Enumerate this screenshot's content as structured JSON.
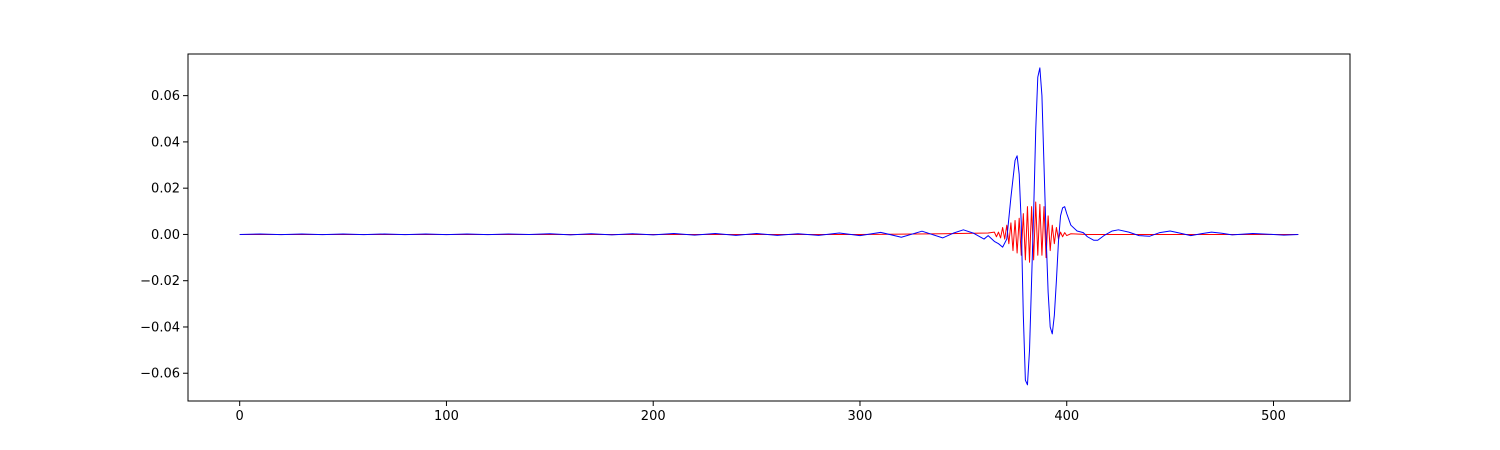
{
  "chart_data": {
    "type": "line",
    "title": "",
    "xlabel": "",
    "ylabel": "",
    "xlim": [
      -25,
      537
    ],
    "ylim": [
      -0.072,
      0.078
    ],
    "xticks": [
      0,
      100,
      200,
      300,
      400,
      500
    ],
    "yticks": [
      -0.06,
      -0.04,
      -0.02,
      0.0,
      0.02,
      0.04,
      0.06
    ],
    "xtick_labels": [
      "0",
      "100",
      "200",
      "300",
      "400",
      "500"
    ],
    "ytick_labels": [
      "−0.06",
      "−0.04",
      "−0.02",
      "0.00",
      "0.02",
      "0.04",
      "0.06"
    ],
    "grid": false,
    "legend": "none",
    "series": [
      {
        "color": "#ff0000",
        "points": [
          [
            0,
            0
          ],
          [
            210,
            0
          ],
          [
            300,
            0
          ],
          [
            340,
            0.0003
          ],
          [
            355,
            0.0005
          ],
          [
            362,
            0.0006
          ],
          [
            365,
            0.001
          ],
          [
            366,
            -0.001
          ],
          [
            367,
            0.001
          ],
          [
            368,
            -0.0015
          ],
          [
            369,
            0.003
          ],
          [
            370,
            -0.002
          ],
          [
            371,
            0.004
          ],
          [
            372,
            -0.004
          ],
          [
            373,
            0.005
          ],
          [
            374,
            -0.007
          ],
          [
            375,
            0.006
          ],
          [
            376,
            -0.008
          ],
          [
            377,
            0.007
          ],
          [
            378,
            -0.009
          ],
          [
            379,
            0.009
          ],
          [
            380,
            -0.011
          ],
          [
            381,
            0.012
          ],
          [
            382,
            -0.012
          ],
          [
            383,
            0.012
          ],
          [
            384,
            -0.011
          ],
          [
            385,
            0.014
          ],
          [
            386,
            -0.009
          ],
          [
            387,
            0.013
          ],
          [
            388,
            -0.009
          ],
          [
            389,
            0.012
          ],
          [
            390,
            -0.01
          ],
          [
            391,
            0.008
          ],
          [
            392,
            -0.007
          ],
          [
            393,
            0.004
          ],
          [
            394,
            -0.004
          ],
          [
            395,
            0.003
          ],
          [
            396,
            -0.002
          ],
          [
            397,
            0.001
          ],
          [
            398,
            -0.001
          ],
          [
            399,
            0.0008
          ],
          [
            400,
            -0.0005
          ],
          [
            402,
            0.0003
          ],
          [
            410,
            0
          ],
          [
            512,
            0
          ]
        ]
      },
      {
        "color": "#0000ff",
        "points": [
          [
            0,
            0
          ],
          [
            10,
            0.0002
          ],
          [
            20,
            -0.0001
          ],
          [
            30,
            0.0002
          ],
          [
            40,
            -0.0001
          ],
          [
            50,
            0.0002
          ],
          [
            60,
            -0.0001
          ],
          [
            70,
            0.0002
          ],
          [
            80,
            -0.0001
          ],
          [
            90,
            0.0002
          ],
          [
            100,
            -0.0001
          ],
          [
            110,
            0.0002
          ],
          [
            120,
            -0.0001
          ],
          [
            130,
            0.0002
          ],
          [
            140,
            0.0
          ],
          [
            150,
            0.0003
          ],
          [
            160,
            -0.0002
          ],
          [
            170,
            0.0003
          ],
          [
            180,
            -0.0002
          ],
          [
            190,
            0.0003
          ],
          [
            200,
            -0.0002
          ],
          [
            210,
            0.0004
          ],
          [
            220,
            -0.0003
          ],
          [
            230,
            0.0004
          ],
          [
            240,
            -0.0004
          ],
          [
            250,
            0.0004
          ],
          [
            260,
            -0.0004
          ],
          [
            270,
            0.0003
          ],
          [
            280,
            -0.0004
          ],
          [
            290,
            0.0006
          ],
          [
            300,
            -0.0005
          ],
          [
            310,
            0.0009
          ],
          [
            320,
            -0.0012
          ],
          [
            330,
            0.0014
          ],
          [
            340,
            -0.0015
          ],
          [
            345,
            0.0005
          ],
          [
            350,
            0.002
          ],
          [
            355,
            0.0005
          ],
          [
            360,
            -0.002
          ],
          [
            362,
            -0.0005
          ],
          [
            365,
            -0.003
          ],
          [
            367,
            -0.004
          ],
          [
            369,
            -0.0055
          ],
          [
            371,
            -0.002
          ],
          [
            373,
            0.016
          ],
          [
            375,
            0.032
          ],
          [
            376,
            0.034
          ],
          [
            377,
            0.026
          ],
          [
            378,
            0.005
          ],
          [
            379,
            -0.035
          ],
          [
            380,
            -0.063
          ],
          [
            381,
            -0.065
          ],
          [
            382,
            -0.05
          ],
          [
            383,
            -0.02
          ],
          [
            384,
            0.01
          ],
          [
            385,
            0.045
          ],
          [
            386,
            0.068
          ],
          [
            387,
            0.072
          ],
          [
            388,
            0.06
          ],
          [
            389,
            0.03
          ],
          [
            390,
            0.0
          ],
          [
            391,
            -0.025
          ],
          [
            392,
            -0.04
          ],
          [
            393,
            -0.043
          ],
          [
            394,
            -0.035
          ],
          [
            395,
            -0.02
          ],
          [
            396,
            -0.003
          ],
          [
            397,
            0.008
          ],
          [
            398,
            0.0115
          ],
          [
            399,
            0.012
          ],
          [
            400,
            0.009
          ],
          [
            402,
            0.004
          ],
          [
            405,
            0.0015
          ],
          [
            408,
            0.0008
          ],
          [
            410,
            -0.001
          ],
          [
            413,
            -0.0025
          ],
          [
            415,
            -0.0025
          ],
          [
            418,
            -0.0005
          ],
          [
            422,
            0.0015
          ],
          [
            425,
            0.002
          ],
          [
            430,
            0.001
          ],
          [
            435,
            -0.0005
          ],
          [
            440,
            -0.0008
          ],
          [
            445,
            0.0008
          ],
          [
            450,
            0.0015
          ],
          [
            455,
            0.0005
          ],
          [
            460,
            -0.0005
          ],
          [
            465,
            0.0003
          ],
          [
            470,
            0.001
          ],
          [
            475,
            0.0005
          ],
          [
            480,
            -0.0002
          ],
          [
            490,
            0.0004
          ],
          [
            500,
            0.0
          ],
          [
            505,
            -0.0003
          ],
          [
            512,
            0.0
          ]
        ]
      }
    ]
  }
}
